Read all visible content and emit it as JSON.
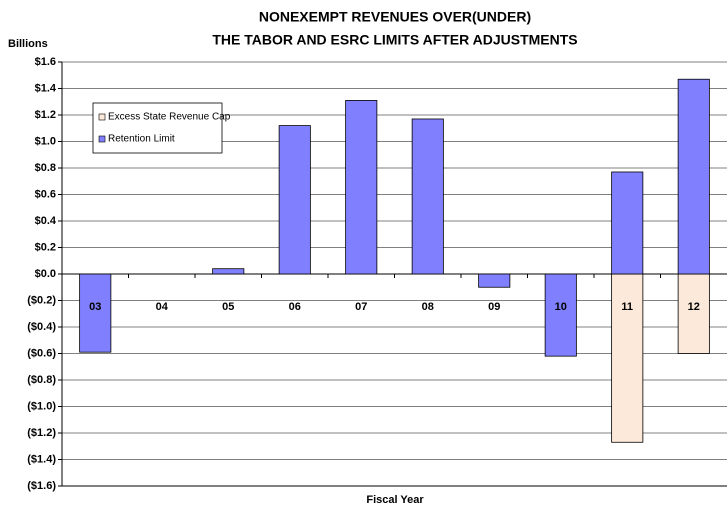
{
  "chart_data": {
    "type": "bar",
    "stacked": true,
    "title": [
      "NONEXEMPT REVENUES OVER(UNDER)",
      "THE TABOR AND ESRC LIMITS AFTER ADJUSTMENTS"
    ],
    "ylabel": "Billions",
    "xlabel": "Fiscal Year",
    "categories": [
      "03",
      "04",
      "05",
      "06",
      "07",
      "08",
      "09",
      "10",
      "11",
      "12"
    ],
    "series": [
      {
        "name": "Excess State Revenue Cap",
        "color": "#fde9d9",
        "values": [
          null,
          null,
          null,
          null,
          null,
          null,
          null,
          null,
          -1.27,
          -0.6
        ]
      },
      {
        "name": "Retention Limit",
        "color": "#8080ff",
        "values": [
          -0.59,
          0,
          0.04,
          1.12,
          1.31,
          1.17,
          -0.1,
          -0.62,
          0.77,
          1.47
        ]
      }
    ],
    "ylim": [
      -1.6,
      1.6
    ],
    "yticks": [
      {
        "value": 1.6,
        "label": "$1.6"
      },
      {
        "value": 1.4,
        "label": "$1.4"
      },
      {
        "value": 1.2,
        "label": "$1.2"
      },
      {
        "value": 1.0,
        "label": "$1.0"
      },
      {
        "value": 0.8,
        "label": "$0.8"
      },
      {
        "value": 0.6,
        "label": "$0.6"
      },
      {
        "value": 0.4,
        "label": "$0.4"
      },
      {
        "value": 0.2,
        "label": "$0.2"
      },
      {
        "value": 0,
        "label": "$0.0"
      },
      {
        "value": -0.2,
        "label": "($0.2)"
      },
      {
        "value": -0.4,
        "label": "($0.4)"
      },
      {
        "value": -0.6,
        "label": "($0.6)"
      },
      {
        "value": -0.8,
        "label": "($0.8)"
      },
      {
        "value": -1.0,
        "label": "($1.0)"
      },
      {
        "value": -1.2,
        "label": "($1.2)"
      },
      {
        "value": -1.4,
        "label": "($1.4)"
      },
      {
        "value": -1.6,
        "label": "($1.6)"
      }
    ],
    "grid": true,
    "legend": "upper left"
  }
}
